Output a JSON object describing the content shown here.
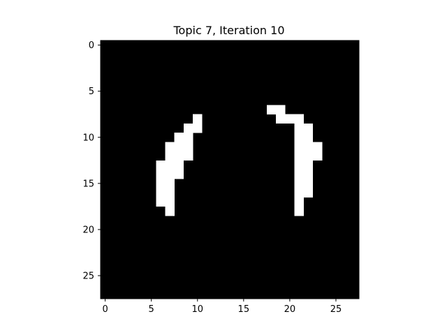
{
  "chart_data": {
    "type": "heatmap",
    "title": "Topic 7, Iteration 10",
    "xlabel": "",
    "ylabel": "",
    "grid_size": [
      28,
      28
    ],
    "xlim": [
      -0.5,
      27.5
    ],
    "ylim": [
      27.5,
      -0.5
    ],
    "x_ticks": [
      0,
      5,
      10,
      15,
      20,
      25
    ],
    "y_ticks": [
      0,
      5,
      10,
      15,
      20,
      25
    ],
    "grid": false,
    "colormap": "gray",
    "background_color": "#000000",
    "foreground_color": "#ffffff",
    "value_range": [
      0,
      1
    ],
    "note_on_cells": "cells lists [row, col] of cells with value 1; all other cells are 0",
    "cells": [
      [
        7,
        18
      ],
      [
        7,
        19
      ],
      [
        8,
        10
      ],
      [
        8,
        19
      ],
      [
        8,
        20
      ],
      [
        8,
        21
      ],
      [
        9,
        9
      ],
      [
        9,
        10
      ],
      [
        9,
        21
      ],
      [
        9,
        22
      ],
      [
        10,
        8
      ],
      [
        10,
        9
      ],
      [
        10,
        21
      ],
      [
        10,
        22
      ],
      [
        11,
        7
      ],
      [
        11,
        8
      ],
      [
        11,
        9
      ],
      [
        11,
        21
      ],
      [
        11,
        22
      ],
      [
        11,
        23
      ],
      [
        12,
        7
      ],
      [
        12,
        8
      ],
      [
        12,
        9
      ],
      [
        12,
        21
      ],
      [
        12,
        22
      ],
      [
        12,
        23
      ],
      [
        13,
        6
      ],
      [
        13,
        7
      ],
      [
        13,
        8
      ],
      [
        13,
        21
      ],
      [
        13,
        22
      ],
      [
        14,
        6
      ],
      [
        14,
        7
      ],
      [
        14,
        8
      ],
      [
        14,
        21
      ],
      [
        14,
        22
      ],
      [
        15,
        6
      ],
      [
        15,
        7
      ],
      [
        15,
        21
      ],
      [
        15,
        22
      ],
      [
        16,
        6
      ],
      [
        16,
        7
      ],
      [
        16,
        21
      ],
      [
        16,
        22
      ],
      [
        17,
        6
      ],
      [
        17,
        7
      ],
      [
        17,
        21
      ],
      [
        18,
        7
      ],
      [
        18,
        21
      ]
    ]
  }
}
